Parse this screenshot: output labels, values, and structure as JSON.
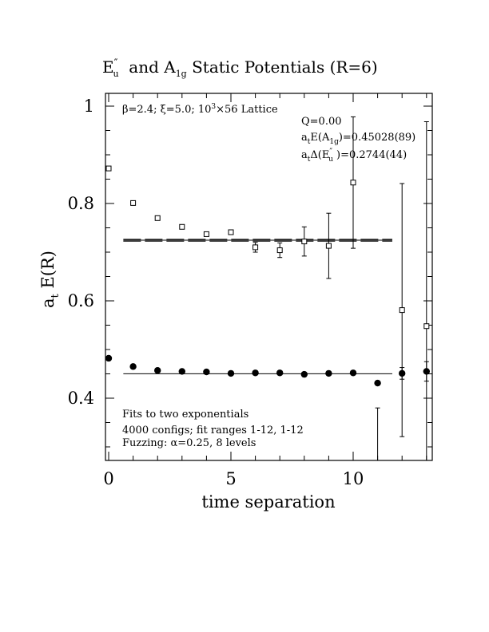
{
  "chart_data": {
    "type": "scatter",
    "title": {
      "prefix": "E",
      "prefix_sup": "″",
      "prefix_sub": "u",
      "mid": "  and A",
      "mid_sub": "1g",
      "suffix": " Static Potentials (R=6)"
    },
    "xlabel": "time separation",
    "ylabel": "a",
    "ylabel_sub": "t",
    "ylabel_rest": " E(R)",
    "xlim": [
      0,
      13
    ],
    "ylim": [
      0.27,
      1.02
    ],
    "xticks": [
      0,
      5,
      10
    ],
    "xtick_labels": [
      "0",
      "5",
      "10"
    ],
    "yticks": [
      0.4,
      0.6,
      0.8,
      1.0
    ],
    "ytick_labels": [
      "0.4",
      "0.6",
      "0.8",
      "1"
    ],
    "annotations": {
      "lattice_beta": "β=2.4;",
      "lattice_xi": "ξ=5.0;",
      "lattice_size": "10",
      "lattice_size_sup": "3",
      "lattice_size_rest": "×56 Lattice",
      "q": "Q=0.00",
      "energy_pre": "a",
      "energy_sub_t": "t",
      "energy_mid": "E(A",
      "energy_sub": "1g",
      "energy_val": ")=0.45028(89)",
      "gap_pre": "a",
      "gap_sub_t": "t",
      "gap_mid": "Δ(E",
      "gap_sup": "″",
      "gap_sub": "u",
      "gap_val": " )=0.2744(44)",
      "fits": "Fits to two exponentials",
      "configs": "4000 configs; fit ranges 1-12, 1-12",
      "fuzzing": "Fuzzing: α=0.25, 8 levels"
    },
    "series": [
      {
        "marker": "open-square",
        "x": [
          0,
          1,
          2,
          3,
          4,
          5,
          6,
          7,
          8,
          9,
          10,
          12,
          13
        ],
        "y": [
          0.872,
          0.801,
          0.77,
          0.752,
          0.737,
          0.741,
          0.71,
          0.704,
          0.722,
          0.713,
          0.843,
          0.581,
          0.548
        ],
        "err": [
          0.003,
          0.004,
          0.004,
          0.004,
          0.005,
          0.005,
          0.01,
          0.015,
          0.03,
          0.067,
          0.135,
          0.26,
          0.42
        ]
      },
      {
        "marker": "filled-circle",
        "x": [
          0,
          1,
          2,
          3,
          4,
          5,
          6,
          7,
          8,
          9,
          10,
          11,
          12,
          13
        ],
        "y": [
          0.482,
          0.465,
          0.457,
          0.455,
          0.454,
          0.451,
          0.452,
          0.452,
          0.449,
          0.451,
          0.452,
          0.431,
          0.451,
          0.455
        ],
        "err": [
          0.002,
          0.002,
          0.002,
          0.002,
          0.002,
          0.002,
          0.002,
          0.003,
          0.003,
          0.003,
          0.004,
          0.005,
          0.012,
          0.02
        ]
      }
    ],
    "lower_errorbar_t11": [
      0.27,
      0.38
    ],
    "fit_lines": [
      {
        "x": [
          0.6,
          11.6
        ],
        "y": 0.7245,
        "band": [
          0.7225,
          0.7265
        ],
        "style": "double-dashed"
      },
      {
        "x": [
          0.6,
          11.6
        ],
        "y": 0.4503,
        "style": "solid"
      }
    ],
    "grid": false,
    "legend": "none"
  }
}
